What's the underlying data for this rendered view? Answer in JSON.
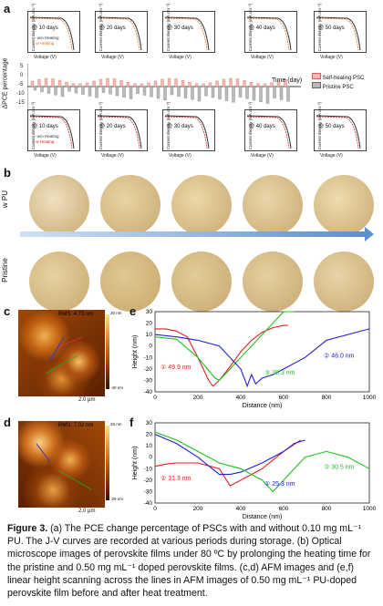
{
  "panel_labels": {
    "a": "a",
    "b": "b",
    "c": "c",
    "d": "d",
    "e": "e",
    "f": "f"
  },
  "panel_a": {
    "ylabel": "ΔPCE percentage",
    "xlabel": "Time (day)",
    "legend": [
      "Self-healing PSC",
      "Pristine PSC"
    ],
    "top_row_days": [
      "@ 10 days",
      "@ 20 days",
      "@ 30 days",
      "@ 40 days",
      "@ 50 days"
    ],
    "bottom_row_days": [
      "@ 10 days",
      "@ 20 days",
      "@ 30 days",
      "@ 40 days",
      "@ 50 days"
    ],
    "mini_xlabel": "Voltage (V)",
    "mini_ylabel": "Current density (mA cm⁻²)",
    "top_legend": [
      "w/o Heating",
      "w Heating"
    ],
    "bottom_legend": [
      "w/o Heating",
      "w Heating"
    ],
    "y_ticks": [
      "5",
      "0",
      "-5",
      "-10",
      "-15"
    ]
  },
  "panel_b": {
    "row1_label": "w PU",
    "row2_label": "Pristine"
  },
  "panel_c": {
    "rms": "RMS: 4.73 nm",
    "scale": "2.0 μm",
    "zmax": "30 nm",
    "zmin": "-40 nm",
    "markers": [
      "①",
      "②",
      "③"
    ]
  },
  "panel_d": {
    "rms": "RMS: 7.02 nm",
    "scale": "2.0 μm",
    "zmax": "28 nm",
    "zmin": "-29 nm",
    "markers": [
      "①",
      "②",
      "③"
    ]
  },
  "chart_data": [
    {
      "type": "line",
      "panel": "e",
      "xlabel": "Distance (nm)",
      "ylabel": "Height (nm)",
      "xlim": [
        0,
        1000
      ],
      "ylim": [
        -40,
        30
      ],
      "x_ticks": [
        0,
        200,
        400,
        600,
        800,
        1000
      ],
      "y_ticks": [
        -40,
        -30,
        -20,
        -10,
        0,
        10,
        20,
        30
      ],
      "series": [
        {
          "color": "#e02020",
          "x": [
            0,
            50,
            100,
            150,
            200,
            250,
            270,
            300,
            350,
            400,
            450,
            500,
            550,
            600,
            620
          ],
          "y": [
            15,
            15,
            13,
            8,
            -10,
            -30,
            -35,
            -30,
            -18,
            -5,
            5,
            12,
            16,
            18,
            18
          ]
        },
        {
          "color": "#20c020",
          "x": [
            0,
            100,
            200,
            280,
            300,
            350,
            400,
            450,
            500,
            550,
            600,
            650
          ],
          "y": [
            8,
            6,
            -10,
            -28,
            -30,
            -20,
            -10,
            0,
            10,
            20,
            30,
            30
          ]
        },
        {
          "color": "#2020d0",
          "x": [
            0,
            100,
            200,
            300,
            400,
            430,
            450,
            470,
            500,
            550,
            600,
            700,
            800,
            900,
            1000
          ],
          "y": [
            10,
            8,
            5,
            0,
            -20,
            -35,
            -25,
            -33,
            -28,
            -25,
            -20,
            -10,
            5,
            10,
            15
          ]
        }
      ],
      "annotations": [
        "① 49.9 nm",
        "③ 38.3 nm",
        "② 46.0 nm"
      ]
    },
    {
      "type": "line",
      "panel": "f",
      "xlabel": "Distance (nm)",
      "ylabel": "Height (nm)",
      "xlim": [
        0,
        1000
      ],
      "ylim": [
        -40,
        30
      ],
      "x_ticks": [
        0,
        200,
        400,
        600,
        800,
        1000
      ],
      "y_ticks": [
        -40,
        -30,
        -20,
        -10,
        0,
        10,
        20,
        30
      ],
      "series": [
        {
          "color": "#e02020",
          "x": [
            0,
            50,
            100,
            200,
            300,
            350,
            400,
            450,
            500,
            600,
            680
          ],
          "y": [
            -8,
            -6,
            -5,
            -5,
            -10,
            -25,
            -20,
            -15,
            -10,
            5,
            15
          ]
        },
        {
          "color": "#2020d0",
          "x": [
            0,
            100,
            200,
            300,
            350,
            400,
            500,
            600,
            650,
            700
          ],
          "y": [
            20,
            12,
            0,
            -15,
            -15,
            -13,
            -5,
            5,
            12,
            15
          ]
        },
        {
          "color": "#20c020",
          "x": [
            0,
            100,
            200,
            300,
            400,
            500,
            550,
            600,
            700,
            800,
            900,
            1000
          ],
          "y": [
            22,
            15,
            5,
            -5,
            -10,
            -20,
            -30,
            -20,
            0,
            5,
            0,
            -10
          ]
        }
      ],
      "annotations": [
        "② 31.3 nm",
        "① 25.3 nm",
        "③ 30.5 nm"
      ]
    }
  ],
  "caption": {
    "fig": "Figure 3.",
    "text": " (a) The PCE change percentage of PSCs with and without 0.10 mg mL⁻¹ PU. The J-V curves are recorded at various periods during storage. (b) Optical microscope images of perovskite films under 80 ºC by prolonging the heating time for the pristine and 0.50 mg mL⁻¹ doped perovskite films. (c,d) AFM images and (e,f) linear height scanning across the lines in AFM images of 0.50 mg mL⁻¹ PU-doped perovskite film before and after heat treatment."
  },
  "colors": {
    "red": "#e02020",
    "green": "#20c020",
    "blue": "#2020d0",
    "bar_red": "#f2b8b0",
    "bar_gray": "#bbbbbb"
  }
}
